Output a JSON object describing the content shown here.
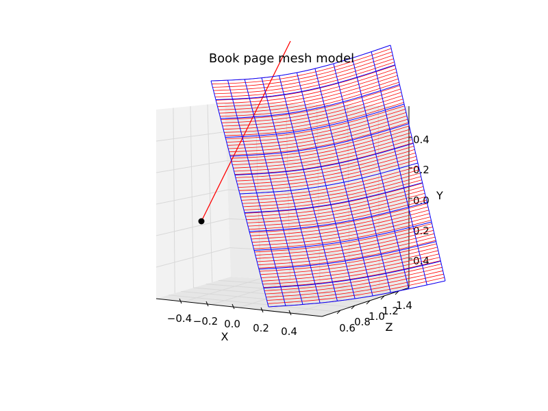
{
  "chart_data": {
    "type": "surface3d",
    "title": "Book page mesh model",
    "xlabel": "X",
    "ylabel": "Y",
    "zlabel": "Z",
    "x_ticks": [
      "−0.4",
      "−0.2",
      "0.0",
      "0.2",
      "0.4"
    ],
    "y_ticks": [
      "0.4",
      "0.2",
      "0.0",
      "0.2",
      "0.4"
    ],
    "z_ticks": [
      "0.6",
      "0.8",
      "1.0",
      "1.2",
      "1.4"
    ],
    "grid": true,
    "mesh": {
      "wire_color": "#ff0000",
      "grid_color": "#0000ff",
      "rows": 70,
      "cols": 10
    },
    "camera_point": {
      "color": "#000000"
    },
    "ray": {
      "color": "#ff0000"
    }
  }
}
